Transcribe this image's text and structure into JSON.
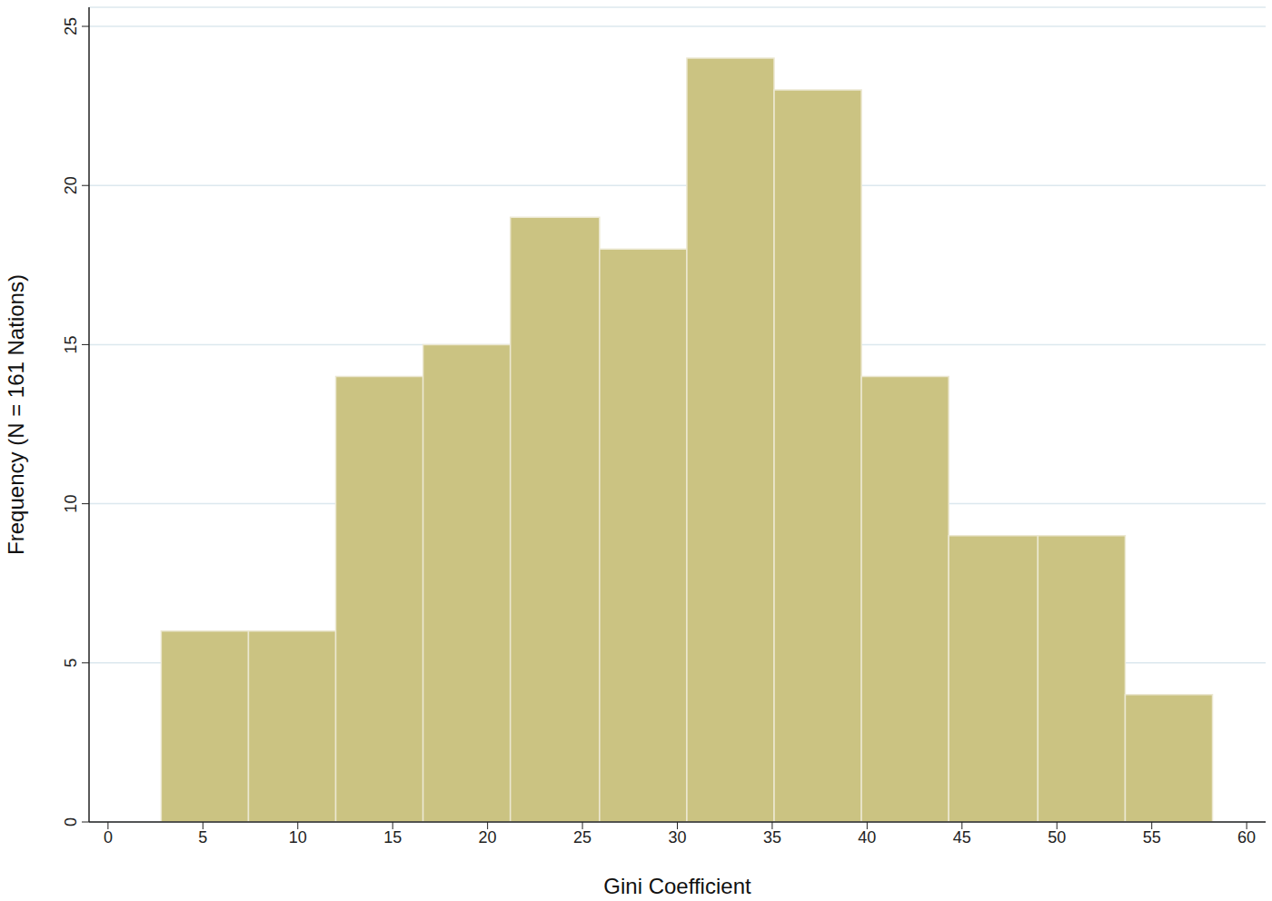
{
  "chart_data": {
    "type": "histogram",
    "x_label": "Gini Coefficient",
    "y_label": "Frequency (N = 161 Nations)",
    "bins": [
      2.8,
      7.4,
      12.0,
      16.6,
      21.2,
      25.9,
      30.5,
      35.1,
      39.7,
      44.3,
      49.0,
      53.6,
      58.2
    ],
    "counts": [
      6,
      6,
      14,
      15,
      19,
      18,
      24,
      23,
      14,
      9,
      9,
      4
    ],
    "color": "#cbc382",
    "xlim": [
      -1,
      61
    ],
    "ylim": [
      0,
      25.6
    ],
    "xticks": [
      0,
      5,
      10,
      15,
      20,
      25,
      30,
      35,
      40,
      45,
      50,
      55,
      60
    ],
    "yticks": [
      0,
      5,
      10,
      15,
      20,
      25
    ],
    "grid": true
  }
}
